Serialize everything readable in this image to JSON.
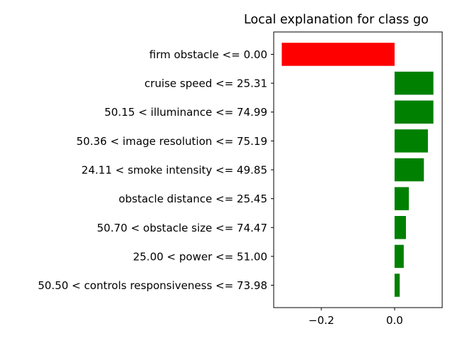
{
  "chart_data": {
    "type": "bar",
    "orientation": "horizontal",
    "title": "Local explanation for class go",
    "xlabel": "",
    "ylabel": "",
    "xlim": [
      -0.33,
      0.13
    ],
    "x_ticks": [
      {
        "value": -0.2,
        "label": "−0.2"
      },
      {
        "value": 0.0,
        "label": "0.0"
      }
    ],
    "grid": false,
    "categories": [
      "firm obstacle <= 0.00",
      "cruise speed <= 25.31",
      "50.15 < illuminance <= 74.99",
      "50.36 < image resolution <= 75.19",
      "24.11 < smoke intensity <= 49.85",
      "obstacle distance <= 25.45",
      "50.70 < obstacle size <= 74.47",
      "25.00 < power <= 51.00",
      "50.50 < controls responsiveness <= 73.98"
    ],
    "values": [
      -0.308,
      0.106,
      0.106,
      0.091,
      0.08,
      0.039,
      0.031,
      0.025,
      0.014
    ],
    "colors": {
      "positive": "#008000",
      "negative": "#ff0000",
      "axis": "#000000"
    }
  }
}
